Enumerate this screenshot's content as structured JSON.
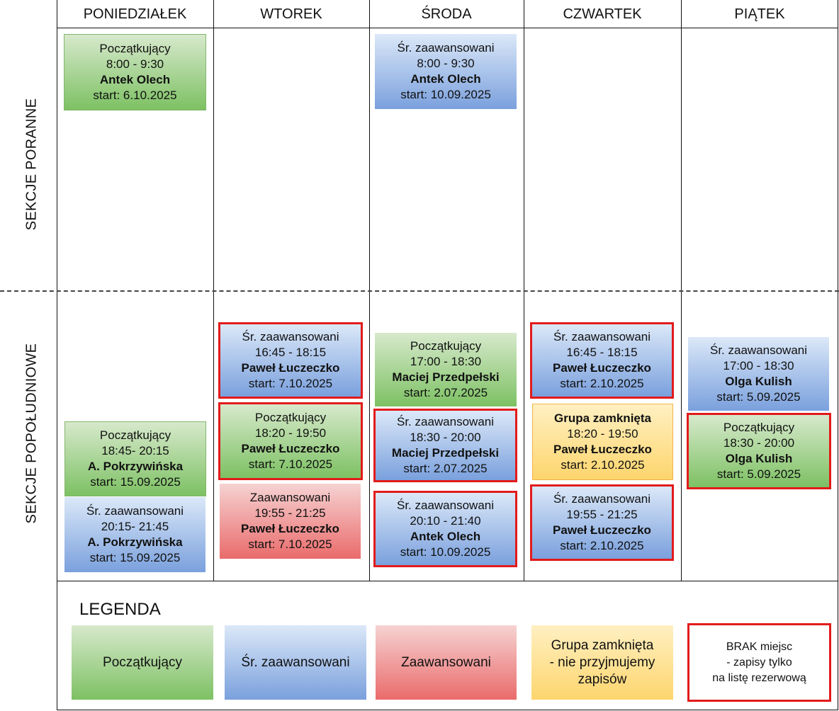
{
  "days": [
    "PONIEDZIAŁEK",
    "WTOREK",
    "ŚRODA",
    "CZWARTEK",
    "PIĄTEK"
  ],
  "sections": {
    "morning": "SEKCJE PORANNE",
    "afternoon": "SEKCJE POPOŁUDNIOWE"
  },
  "classes": {
    "mon_am": {
      "level": "Początkujący",
      "time": "8:00 - 9:30",
      "teacher": "Antek Olech",
      "start": "start: 6.10.2025"
    },
    "wed_am": {
      "level": "Śr. zaawansowani",
      "time": "8:00 - 9:30",
      "teacher": "Antek Olech",
      "start": "start: 10.09.2025"
    },
    "mon_pm1": {
      "level": "Początkujący",
      "time": "18:45- 20:15",
      "teacher": "A. Pokrzywińska",
      "start": "start: 15.09.2025"
    },
    "mon_pm2": {
      "level": "Śr. zaawansowani",
      "time": "20:15- 21:45",
      "teacher": "A. Pokrzywińska",
      "start": "start: 15.09.2025"
    },
    "tue_pm1": {
      "level": "Śr. zaawansowani",
      "time": "16:45 - 18:15",
      "teacher": "Paweł Łuczeczko",
      "start": "start: 7.10.2025"
    },
    "tue_pm2": {
      "level": "Początkujący",
      "time": "18:20 - 19:50",
      "teacher": "Paweł Łuczeczko",
      "start": "start: 7.10.2025"
    },
    "tue_pm3": {
      "level": "Zaawansowani",
      "time": "19:55 - 21:25",
      "teacher": "Paweł Łuczeczko",
      "start": "start: 7.10.2025"
    },
    "wed_pm1": {
      "level": "Początkujący",
      "time": "17:00 - 18:30",
      "teacher": "Maciej Przedpełski",
      "start": "start: 2.07.2025"
    },
    "wed_pm2": {
      "level": "Śr. zaawansowani",
      "time": "18:30 - 20:00",
      "teacher": "Maciej Przedpełski",
      "start": "start: 2.07.2025"
    },
    "wed_pm3": {
      "level": "Śr. zaawansowani",
      "time": "20:10 - 21:40",
      "teacher": "Antek Olech",
      "start": "start: 10.09.2025"
    },
    "thu_pm1": {
      "level": "Śr. zaawansowani",
      "time": "16:45 - 18:15",
      "teacher": "Paweł Łuczeczko",
      "start": "start: 2.10.2025"
    },
    "thu_pm2": {
      "level": "Grupa zamknięta",
      "time": "18:20 - 19:50",
      "teacher": "Paweł Łuczeczko",
      "start": "start: 2.10.2025"
    },
    "thu_pm3": {
      "level": "Śr. zaawansowani",
      "time": "19:55 - 21:25",
      "teacher": "Paweł Łuczeczko",
      "start": "start: 2.10.2025"
    },
    "fri_pm1": {
      "level": "Śr. zaawansowani",
      "time": "17:00 - 18:30",
      "teacher": "Olga Kulish",
      "start": "start: 5.09.2025"
    },
    "fri_pm2": {
      "level": "Początkujący",
      "time": "18:30 - 20:00",
      "teacher": "Olga Kulish",
      "start": "start: 5.09.2025"
    }
  },
  "legend": {
    "title": "LEGENDA",
    "beginner": "Początkujący",
    "intermediate": "Śr. zaawansowani",
    "advanced": "Zaawansowani",
    "closed_l1": "Grupa zamknięta",
    "closed_l2": "- nie przyjmujemy",
    "closed_l3": "zapisów",
    "full_l1": "BRAK miejsc",
    "full_l2": "- zapisy tylko",
    "full_l3": "na listę rezerwową"
  },
  "colors": {
    "beginner": "#7dc163",
    "intermediate": "#7aa0dd",
    "advanced": "#ea6b6b",
    "closed": "#fdd56d",
    "full_border": "#e21b1b"
  }
}
